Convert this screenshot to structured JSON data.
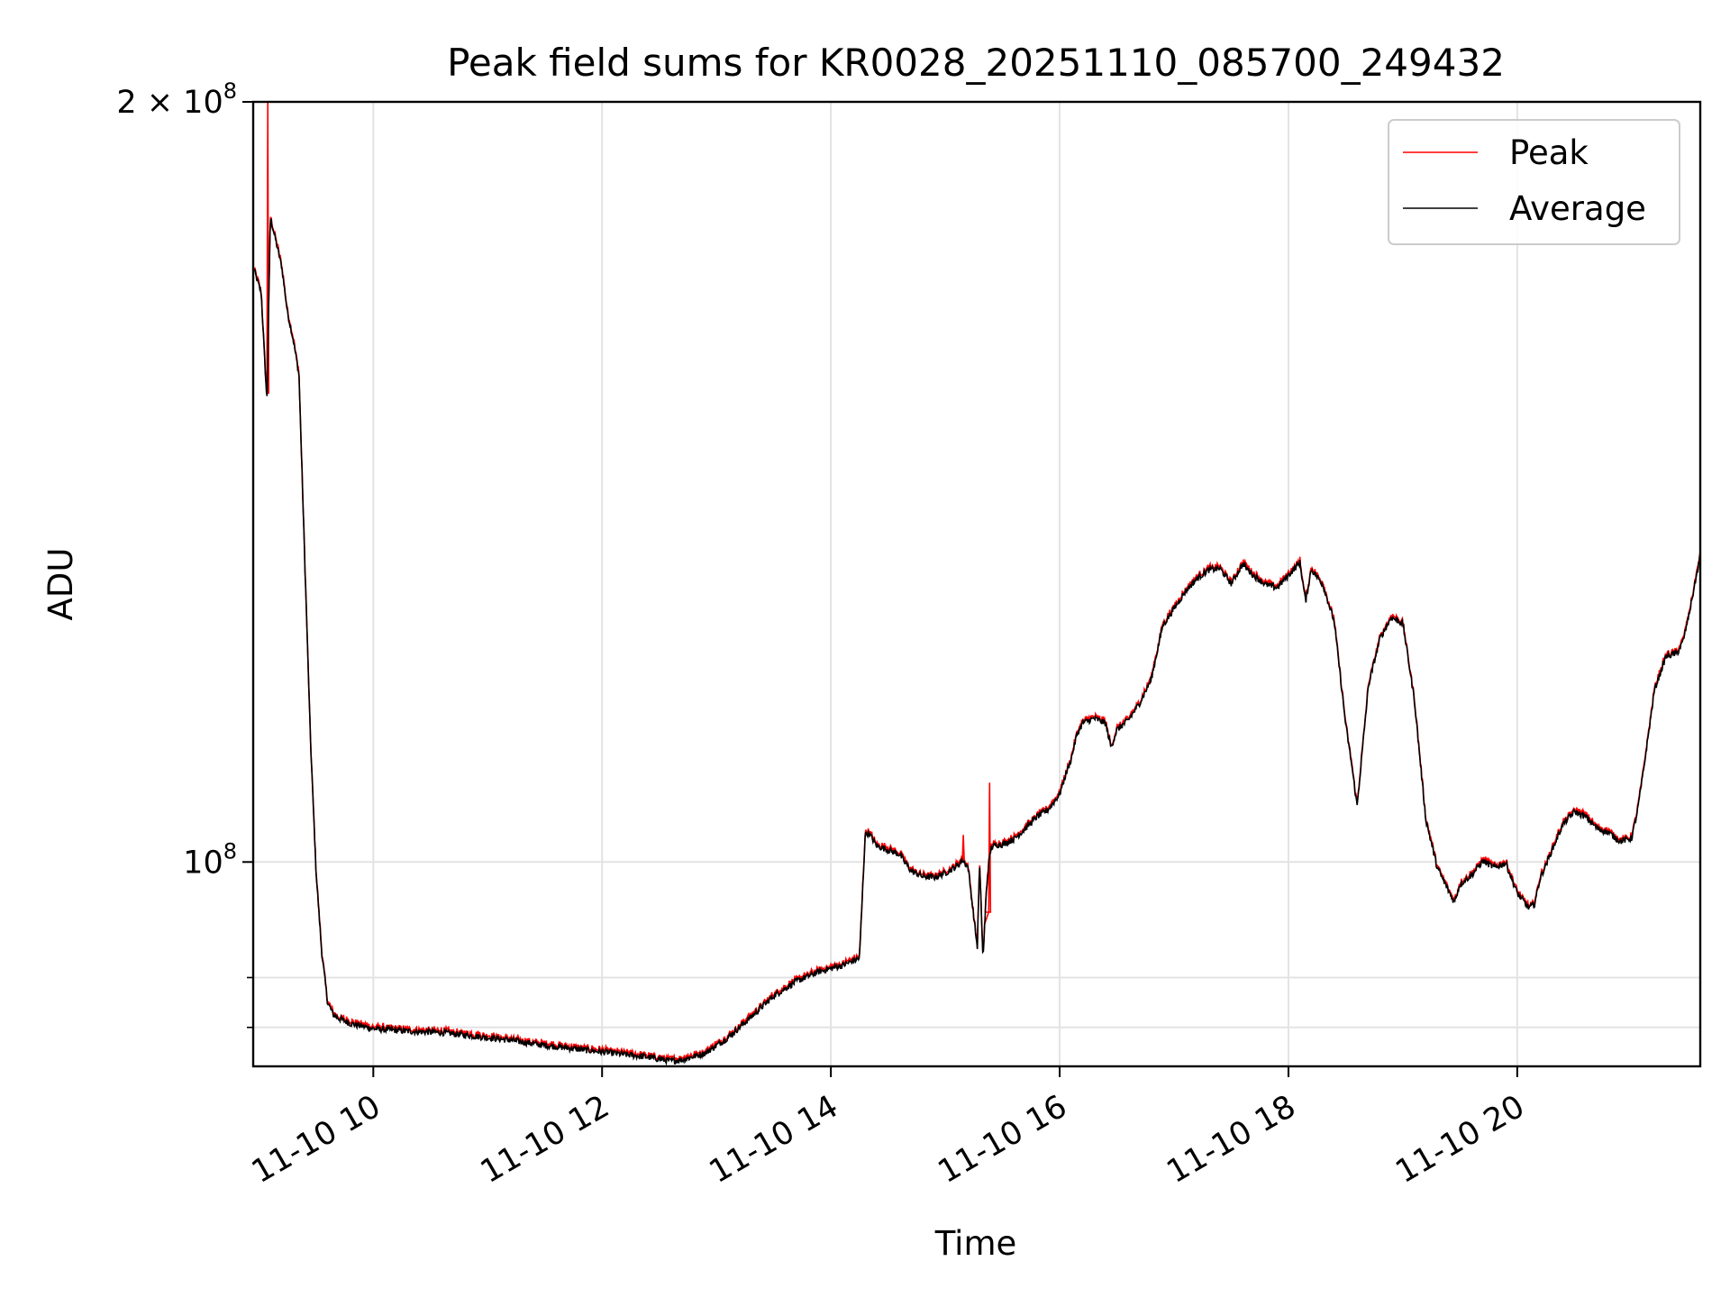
{
  "chart_data": {
    "type": "line",
    "title": "Peak field sums for KR0028_20251110_085700_249432",
    "xlabel": "Time",
    "ylabel": "ADU",
    "x_unit": "hours of 2025-11-10",
    "xlim": [
      8.95,
      21.6
    ],
    "ylim": [
      83000000,
      200000000
    ],
    "yscale": "log",
    "grid": true,
    "legend_position": "top-right",
    "x_ticks": [
      {
        "value": 10,
        "label": "11-10 10"
      },
      {
        "value": 12,
        "label": "11-10 12"
      },
      {
        "value": 14,
        "label": "11-10 14"
      },
      {
        "value": 16,
        "label": "11-10 16"
      },
      {
        "value": 18,
        "label": "11-10 18"
      },
      {
        "value": 20,
        "label": "11-10 20"
      }
    ],
    "y_major_ticks": [
      {
        "value": 100000000,
        "base": "10",
        "exp": "8",
        "prefix": ""
      },
      {
        "value": 200000000,
        "base": "10",
        "exp": "8",
        "prefix": "2 × "
      }
    ],
    "y_minor_ticks": [
      90000000,
      86000000
    ],
    "series": [
      {
        "name": "Peak",
        "color": "#ff0000",
        "spikes": [
          {
            "x": 9.07,
            "y": 200000000
          },
          {
            "x": 15.15,
            "y": 102500000
          },
          {
            "x": 15.38,
            "y": 107500000
          }
        ]
      },
      {
        "name": "Average",
        "color": "#000000",
        "x": [
          8.95,
          9.02,
          9.07,
          9.1,
          9.15,
          9.2,
          9.25,
          9.3,
          9.35,
          9.4,
          9.45,
          9.5,
          9.55,
          9.6,
          9.65,
          9.7,
          9.8,
          9.9,
          10.0,
          10.3,
          10.6,
          10.9,
          11.2,
          11.5,
          11.8,
          12.1,
          12.4,
          12.6,
          12.7,
          12.9,
          13.1,
          13.3,
          13.5,
          13.7,
          13.9,
          14.1,
          14.25,
          14.3,
          14.33,
          14.4,
          14.6,
          14.7,
          14.8,
          14.9,
          15.0,
          15.1,
          15.15,
          15.2,
          15.25,
          15.28,
          15.3,
          15.33,
          15.36,
          15.38,
          15.4,
          15.45,
          15.5,
          15.6,
          15.7,
          15.8,
          15.9,
          16.0,
          16.05,
          16.1,
          16.15,
          16.2,
          16.3,
          16.4,
          16.45,
          16.5,
          16.6,
          16.7,
          16.8,
          16.9,
          17.0,
          17.1,
          17.2,
          17.3,
          17.4,
          17.5,
          17.6,
          17.7,
          17.8,
          17.9,
          18.0,
          18.1,
          18.15,
          18.2,
          18.3,
          18.4,
          18.5,
          18.55,
          18.6,
          18.65,
          18.7,
          18.8,
          18.9,
          19.0,
          19.1,
          19.2,
          19.3,
          19.4,
          19.45,
          19.5,
          19.6,
          19.7,
          19.8,
          19.9,
          20.0,
          20.1,
          20.15,
          20.2,
          20.3,
          20.4,
          20.5,
          20.6,
          20.7,
          20.8,
          20.9,
          21.0,
          21.05,
          21.1,
          21.2,
          21.3,
          21.4,
          21.45,
          21.5,
          21.6
        ],
        "y": [
          172000000,
          168000000,
          152000000,
          180000000,
          176000000,
          172000000,
          165000000,
          161000000,
          156000000,
          132000000,
          112000000,
          99000000,
          92000000,
          88000000,
          87000000,
          86700000,
          86300000,
          86100000,
          85900000,
          85700000,
          85600000,
          85300000,
          85000000,
          84600000,
          84300000,
          84000000,
          83700000,
          83400000,
          83500000,
          84000000,
          85200000,
          86800000,
          88500000,
          89700000,
          90500000,
          91000000,
          91600000,
          102500000,
          102700000,
          101500000,
          100700000,
          99200000,
          98700000,
          98600000,
          99000000,
          99600000,
          100200000,
          99500000,
          95000000,
          92500000,
          99800000,
          91500000,
          97500000,
          99800000,
          101300000,
          101600000,
          101600000,
          102100000,
          103100000,
          104200000,
          104900000,
          106400000,
          108200000,
          109800000,
          112300000,
          113500000,
          114000000,
          113500000,
          111000000,
          112800000,
          113800000,
          115600000,
          118100000,
          124000000,
          126000000,
          128000000,
          129500000,
          130500000,
          130700000,
          128900000,
          131200000,
          129800000,
          128800000,
          128400000,
          129900000,
          131400000,
          126800000,
          130600000,
          128800000,
          124500000,
          113400000,
          109500000,
          105200000,
          111200000,
          117500000,
          122600000,
          125000000,
          124300000,
          116000000,
          104000000,
          99500000,
          97400000,
          96400000,
          98000000,
          98800000,
          100100000,
          99500000,
          99900000,
          97200000,
          95900000,
          96200000,
          98500000,
          101000000,
          103500000,
          104700000,
          104200000,
          103100000,
          102700000,
          101900000,
          102200000,
          104700000,
          108400000,
          117000000,
          120600000,
          121000000,
          122300000,
          125200000,
          132200000
        ]
      }
    ]
  }
}
